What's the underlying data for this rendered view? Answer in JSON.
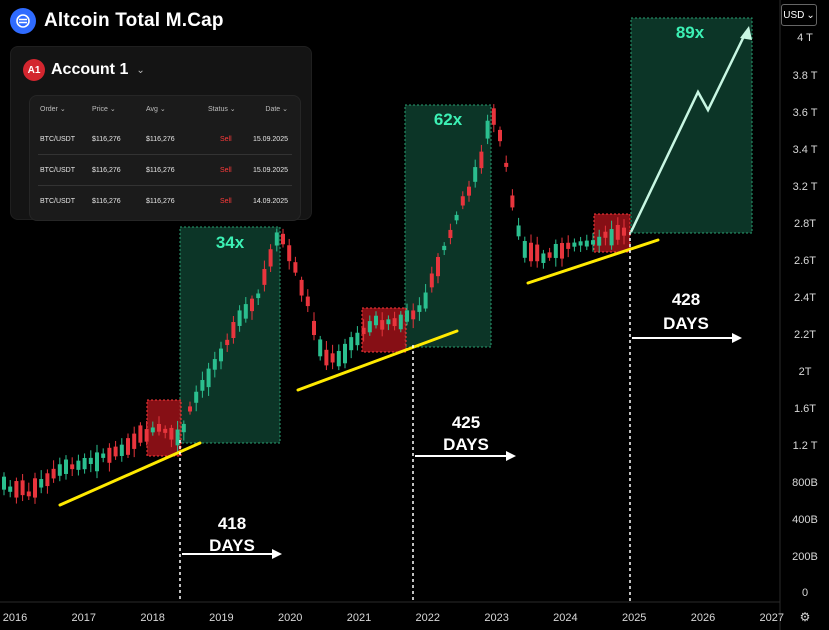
{
  "header": {
    "title": "Altcoin Total M.Cap",
    "currency": "USD"
  },
  "account": {
    "badge": "A1",
    "name": "Account 1",
    "columns": [
      "Order",
      "Price",
      "Avg",
      "Status",
      "Date"
    ],
    "rows": [
      [
        "BTC/USDT",
        "$116,276",
        "$116,276",
        "Sell",
        "15.09.2025"
      ],
      [
        "BTC/USDT",
        "$116,276",
        "$116,276",
        "Sell",
        "15.09.2025"
      ],
      [
        "BTC/USDT",
        "$116,276",
        "$116,276",
        "Sell",
        "14.09.2025"
      ]
    ]
  },
  "colors": {
    "up": "#2bbf8f",
    "down": "#e8353d",
    "zone": "#0d3a2a",
    "zoneText": "#3cf0b4",
    "trend": "#ffea00"
  },
  "chart_data": {
    "type": "candlestick",
    "title": "Altcoin Total M.Cap",
    "x_axis": {
      "labels": [
        "2016",
        "2017",
        "2018",
        "2019",
        "2020",
        "2021",
        "2022",
        "2023",
        "2024",
        "2025",
        "2026",
        "2027"
      ]
    },
    "y_axis": {
      "labels": [
        "4 T",
        "3.8 T",
        "3.6 T",
        "3.4 T",
        "3.2 T",
        "2.8T",
        "2.6T",
        "2.4T",
        "2.2T",
        "2T",
        "1.6T",
        "1.2 T",
        "800B",
        "400B",
        "200B",
        "0"
      ],
      "scale": "non-linear"
    },
    "cycles": [
      {
        "gain": "34x",
        "days": "418",
        "days_label": "DAYS",
        "marker_year": 2018.5
      },
      {
        "gain": "62x",
        "days": "425",
        "days_label": "DAYS",
        "marker_year": 2021.85
      },
      {
        "gain": "89x",
        "days": "428",
        "days_label": "DAYS",
        "marker_year": 2024.99
      }
    ],
    "legend": "none"
  }
}
